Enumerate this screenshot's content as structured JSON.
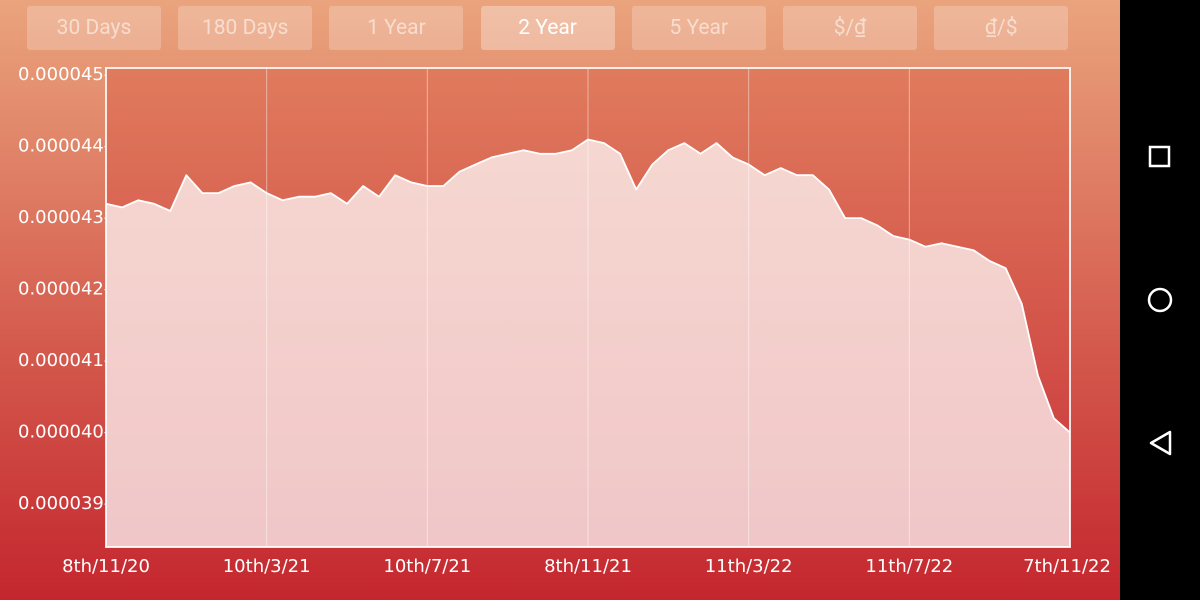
{
  "buttons": [
    "30 Days",
    "180 Days",
    "1 Year",
    "2 Year",
    "5 Year",
    "$/₫",
    "₫/$"
  ],
  "selected": 3,
  "chart_data": {
    "type": "area",
    "categories": [
      "8th/11/20",
      null,
      null,
      null,
      null,
      null,
      null,
      null,
      null,
      null,
      "10th/3/21",
      null,
      null,
      null,
      null,
      null,
      null,
      null,
      null,
      null,
      "10th/7/21",
      null,
      null,
      null,
      null,
      null,
      null,
      null,
      null,
      null,
      "8th/11/21",
      null,
      null,
      null,
      null,
      null,
      null,
      null,
      null,
      null,
      "11th/3/22",
      null,
      null,
      null,
      null,
      null,
      null,
      null,
      null,
      null,
      "11th/7/22",
      null,
      null,
      null,
      null,
      null,
      null,
      null,
      null,
      null,
      "7th/11/22"
    ],
    "values": [
      4.32e-05,
      4.315e-05,
      4.325e-05,
      4.32e-05,
      4.31e-05,
      4.36e-05,
      4.335e-05,
      4.335e-05,
      4.345e-05,
      4.35e-05,
      4.335e-05,
      4.325e-05,
      4.33e-05,
      4.33e-05,
      4.335e-05,
      4.32e-05,
      4.345e-05,
      4.33e-05,
      4.36e-05,
      4.35e-05,
      4.345e-05,
      4.345e-05,
      4.365e-05,
      4.375e-05,
      4.385e-05,
      4.39e-05,
      4.395e-05,
      4.39e-05,
      4.39e-05,
      4.395e-05,
      4.41e-05,
      4.405e-05,
      4.39e-05,
      4.34e-05,
      4.375e-05,
      4.395e-05,
      4.405e-05,
      4.39e-05,
      4.405e-05,
      4.385e-05,
      4.375e-05,
      4.36e-05,
      4.37e-05,
      4.36e-05,
      4.36e-05,
      4.34e-05,
      4.3e-05,
      4.3e-05,
      4.29e-05,
      4.275e-05,
      4.27e-05,
      4.26e-05,
      4.265e-05,
      4.26e-05,
      4.255e-05,
      4.24e-05,
      4.23e-05,
      4.18e-05,
      4.08e-05,
      4.02e-05,
      4e-05
    ],
    "color": "#ffffff",
    "ylim": [
      3.84e-05,
      4.51e-05
    ],
    "yticks": [
      3.9e-05,
      {
        "value": 4e-05,
        "label": "0.000040"
      },
      4.1e-05,
      4.2e-05,
      4.3e-05,
      4.4e-05,
      4.5e-05
    ],
    "grid": "x"
  }
}
